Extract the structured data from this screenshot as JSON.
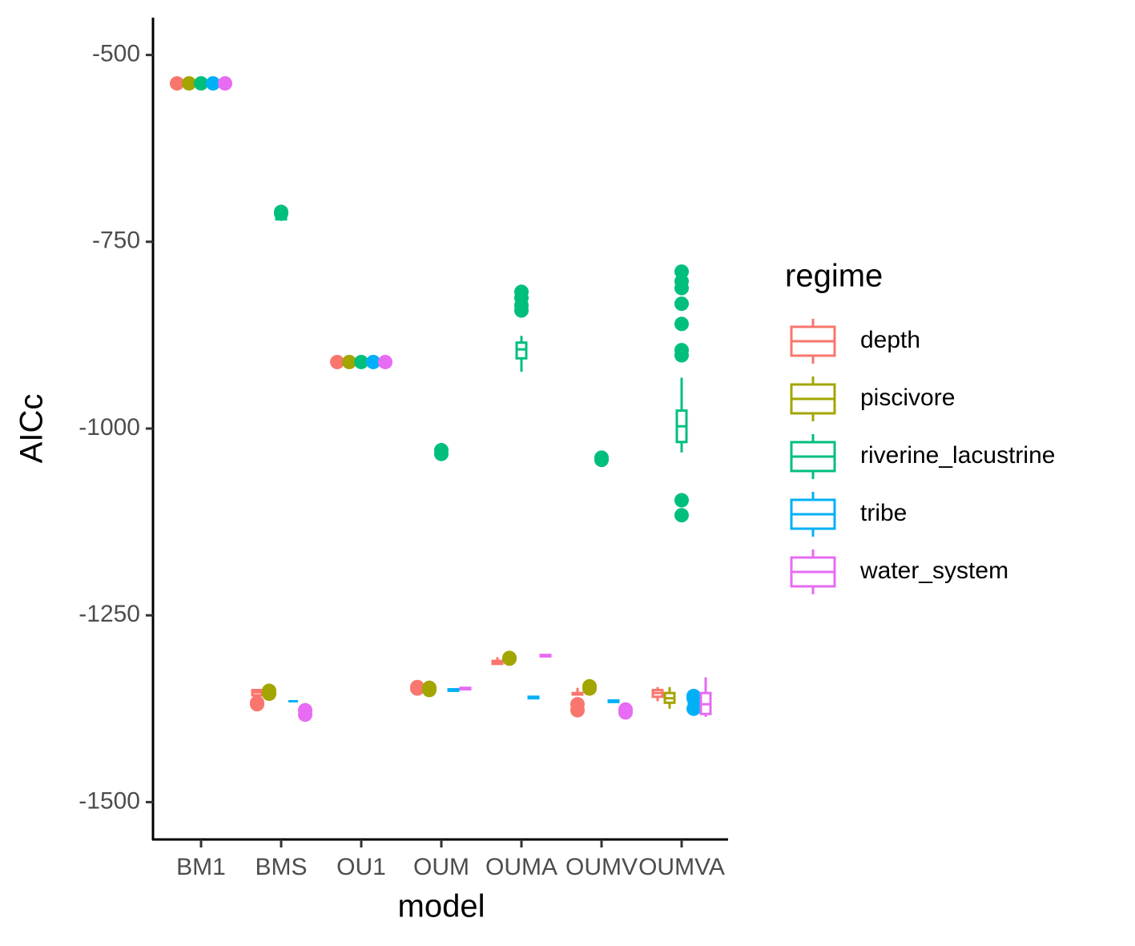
{
  "chart_data": {
    "type": "box",
    "x_label": "model",
    "y_label": "AICc",
    "legend_title": "regime",
    "legend_position": "right",
    "categories": [
      "BM1",
      "BMS",
      "OU1",
      "OUM",
      "OUMA",
      "OUMV",
      "OUMVA"
    ],
    "ylim": [
      -1550,
      -450
    ],
    "yticks": [
      -500,
      -750,
      -1000,
      -1250,
      -1500
    ],
    "grid": false,
    "series": [
      {
        "name": "depth",
        "color": "#F8766D",
        "values": [
          {
            "min": -538,
            "q1": -538,
            "median": -538,
            "q3": -538,
            "max": -538,
            "outliers": [
              -538
            ]
          },
          {
            "min": -1360,
            "q1": -1357,
            "median": -1353,
            "q3": -1350,
            "max": -1349,
            "outliers": [
              -1369,
              -1367
            ]
          },
          {
            "min": -911,
            "q1": -911,
            "median": -911,
            "q3": -911,
            "max": -911,
            "outliers": [
              -911
            ]
          },
          {
            "min": -1352,
            "q1": -1351,
            "median": -1350,
            "q3": -1349,
            "max": -1348,
            "outliers": [
              -1346,
              -1348
            ]
          },
          {
            "min": -1316,
            "q1": -1315,
            "median": -1313,
            "q3": -1311,
            "max": -1306,
            "outliers": []
          },
          {
            "min": -1357,
            "q1": -1356,
            "median": -1355,
            "q3": -1354,
            "max": -1347,
            "outliers": [
              -1369,
              -1377
            ]
          },
          {
            "min": -1365,
            "q1": -1359,
            "median": -1354,
            "q3": -1350,
            "max": -1346,
            "outliers": []
          }
        ]
      },
      {
        "name": "piscivore",
        "color": "#A3A500",
        "values": [
          {
            "min": -538,
            "q1": -538,
            "median": -538,
            "q3": -538,
            "max": -538,
            "outliers": [
              -538
            ]
          },
          {
            "min": -1354,
            "q1": -1354,
            "median": -1354,
            "q3": -1354,
            "max": -1354,
            "outliers": [
              -1351,
              -1355
            ]
          },
          {
            "min": -911,
            "q1": -911,
            "median": -911,
            "q3": -911,
            "max": -911,
            "outliers": [
              -911
            ]
          },
          {
            "min": -1349,
            "q1": -1349,
            "median": -1349,
            "q3": -1349,
            "max": -1349,
            "outliers": [
              -1347,
              -1350
            ]
          },
          {
            "min": -1310,
            "q1": -1310,
            "median": -1310,
            "q3": -1310,
            "max": -1310,
            "outliers": [
              -1307,
              -1308
            ]
          },
          {
            "min": -1350,
            "q1": -1350,
            "median": -1350,
            "q3": -1350,
            "max": -1350,
            "outliers": [
              -1345,
              -1348
            ]
          },
          {
            "min": -1375,
            "q1": -1367,
            "median": -1361,
            "q3": -1354,
            "max": -1346,
            "outliers": []
          }
        ]
      },
      {
        "name": "riverine_lacustrine",
        "color": "#00BF7D",
        "values": [
          {
            "min": -538,
            "q1": -538,
            "median": -538,
            "q3": -538,
            "max": -538,
            "outliers": [
              -538
            ]
          },
          {
            "min": -722,
            "q1": -720,
            "median": -719,
            "q3": -718,
            "max": -716,
            "outliers": [
              -710,
              -712
            ]
          },
          {
            "min": -911,
            "q1": -911,
            "median": -911,
            "q3": -911,
            "max": -911,
            "outliers": [
              -911
            ]
          },
          {
            "min": -1033,
            "q1": -1032,
            "median": -1031,
            "q3": -1030,
            "max": -1030,
            "outliers": [
              -1029,
              -1034
            ]
          },
          {
            "min": -924,
            "q1": -906,
            "median": -894,
            "q3": -885,
            "max": -876,
            "outliers": [
              -817,
              -825,
              -835,
              -842
            ]
          },
          {
            "min": -1041,
            "q1": -1041,
            "median": -1041,
            "q3": -1041,
            "max": -1041,
            "outliers": [
              -1039,
              -1042
            ]
          },
          {
            "min": -1032,
            "q1": -1018,
            "median": -997,
            "q3": -976,
            "max": -932,
            "outliers": [
              -790,
              -803,
              -812,
              -833,
              -860,
              -895,
              -902,
              -1096,
              -1116
            ]
          }
        ]
      },
      {
        "name": "tribe",
        "color": "#00B0F6",
        "values": [
          {
            "min": -538,
            "q1": -538,
            "median": -538,
            "q3": -538,
            "max": -538,
            "outliers": [
              -538
            ]
          },
          {
            "min": -1366,
            "q1": -1365,
            "median": -1365,
            "q3": -1365,
            "max": -1364,
            "outliers": []
          },
          {
            "min": -911,
            "q1": -911,
            "median": -911,
            "q3": -911,
            "max": -911,
            "outliers": [
              -911
            ]
          },
          {
            "min": -1351,
            "q1": -1351,
            "median": -1350,
            "q3": -1349,
            "max": -1349,
            "outliers": []
          },
          {
            "min": -1361,
            "q1": -1361,
            "median": -1360,
            "q3": -1359,
            "max": -1359,
            "outliers": []
          },
          {
            "min": -1366,
            "q1": -1366,
            "median": -1365,
            "q3": -1364,
            "max": -1364,
            "outliers": []
          },
          {
            "min": -1369,
            "q1": -1368,
            "median": -1367,
            "q3": -1366,
            "max": -1365,
            "outliers": [
              -1358,
              -1361,
              -1375
            ]
          }
        ]
      },
      {
        "name": "water_system",
        "color": "#E76BF3",
        "values": [
          {
            "min": -538,
            "q1": -538,
            "median": -538,
            "q3": -538,
            "max": -538,
            "outliers": [
              -538
            ]
          },
          {
            "min": -1377,
            "q1": -1377,
            "median": -1376,
            "q3": -1375,
            "max": -1375,
            "outliers": [
              -1377,
              -1383
            ]
          },
          {
            "min": -911,
            "q1": -911,
            "median": -911,
            "q3": -911,
            "max": -911,
            "outliers": [
              -911
            ]
          },
          {
            "min": -1349,
            "q1": -1349,
            "median": -1348,
            "q3": -1347,
            "max": -1347,
            "outliers": []
          },
          {
            "min": -1305,
            "q1": -1305,
            "median": -1304,
            "q3": -1303,
            "max": -1303,
            "outliers": []
          },
          {
            "min": -1378,
            "q1": -1378,
            "median": -1378,
            "q3": -1378,
            "max": -1378,
            "outliers": [
              -1376,
              -1380
            ]
          },
          {
            "min": -1386,
            "q1": -1382,
            "median": -1369,
            "q3": -1354,
            "max": -1333,
            "outliers": []
          }
        ]
      }
    ]
  }
}
